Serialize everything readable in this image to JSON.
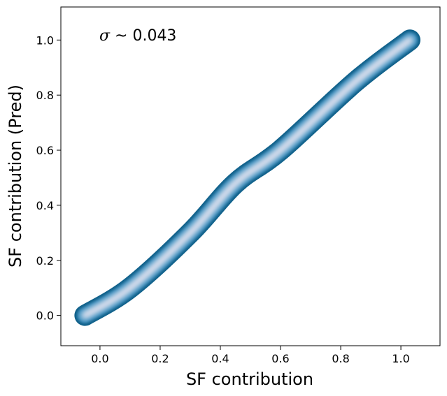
{
  "chart_data": {
    "type": "density",
    "xlabel": "SF contribution",
    "ylabel": "SF contribution (Pred)",
    "xlim": [
      -0.13,
      1.13
    ],
    "ylim": [
      -0.11,
      1.12
    ],
    "xticks": [
      0.0,
      0.2,
      0.4,
      0.6,
      0.8,
      1.0
    ],
    "yticks": [
      0.0,
      0.2,
      0.4,
      0.6,
      0.8,
      1.0
    ],
    "tick_labels": [
      "0.0",
      "0.2",
      "0.4",
      "0.6",
      "0.8",
      "1.0"
    ],
    "annotation": {
      "symbol": "σ",
      "text": " ~ 0.043"
    },
    "grid": false,
    "colormap": [
      "#0b5c86",
      "#3d8fbf",
      "#9cc4de",
      "#efe6f2"
    ],
    "density_ridge": [
      [
        -0.05,
        0.0
      ],
      [
        0.1,
        0.1
      ],
      [
        0.3,
        0.3
      ],
      [
        0.45,
        0.48
      ],
      [
        0.6,
        0.6
      ],
      [
        0.85,
        0.85
      ],
      [
        1.03,
        1.0
      ]
    ]
  }
}
